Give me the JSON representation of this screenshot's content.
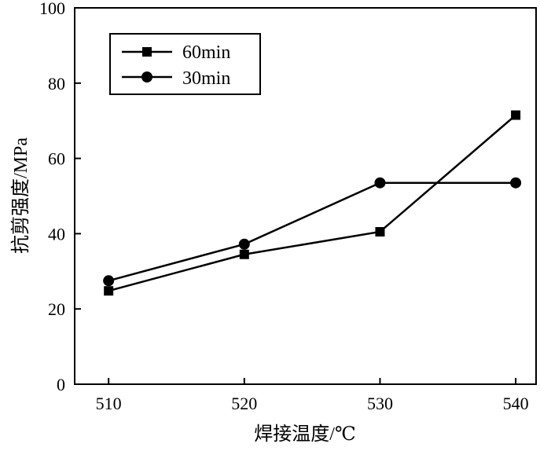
{
  "chart_data": {
    "type": "line",
    "title": "",
    "xlabel": "焊接温度/℃",
    "ylabel": "抗剪强度/MPa",
    "x": [
      510,
      520,
      530,
      540
    ],
    "xlim": [
      507.5,
      541.5
    ],
    "ylim": [
      0,
      100
    ],
    "xticks": [
      "510",
      "520",
      "530",
      "540"
    ],
    "yticks": [
      "0",
      "20",
      "40",
      "60",
      "80",
      "100"
    ],
    "grid": false,
    "legend_position": "top-left",
    "series": [
      {
        "name": "60min",
        "marker": "square",
        "color": "#000000",
        "values": [
          24.8,
          34.5,
          40.5,
          71.5
        ]
      },
      {
        "name": "30min",
        "marker": "circle",
        "color": "#000000",
        "values": [
          27.5,
          37.2,
          53.5,
          53.5
        ]
      }
    ]
  }
}
